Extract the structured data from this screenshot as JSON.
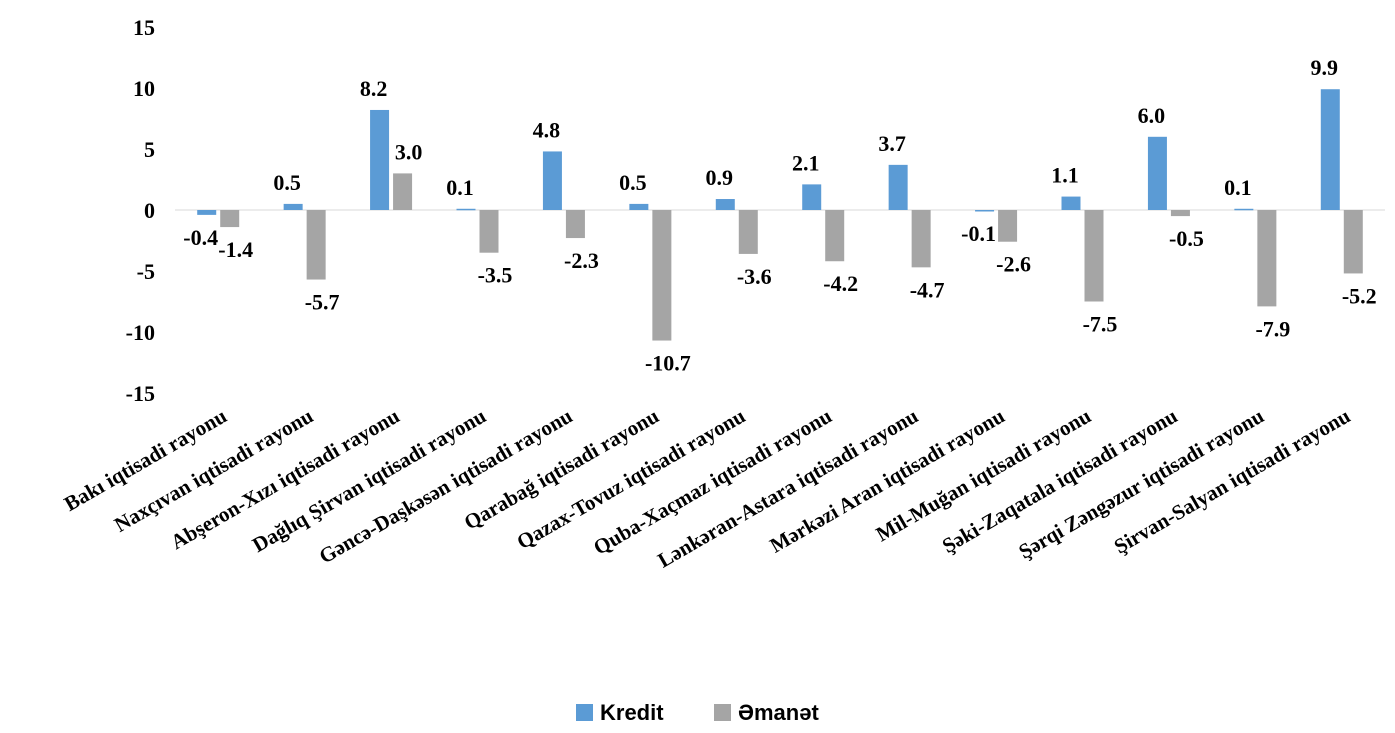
{
  "chart_data": {
    "type": "bar",
    "title": "",
    "xlabel": "",
    "ylabel": "",
    "ylim": [
      -15,
      15
    ],
    "yticks": [
      15,
      10,
      5,
      0,
      -5,
      -10,
      -15
    ],
    "grid": false,
    "legend_position": "bottom",
    "categories": [
      "Bakı iqtisadi rayonu",
      "Naxçıvan iqtisadi rayonu",
      "Abşeron-Xızı iqtisadi rayonu",
      "Dağlıq Şirvan iqtisadi rayonu",
      "Gəncə-Daşkəsən iqtisadi rayonu",
      "Qarabağ iqtisadi rayonu",
      "Qazax-Tovuz iqtisadi rayonu",
      "Quba-Xaçmaz iqtisadi rayonu",
      "Lənkəran-Astara iqtisadi rayonu",
      "Mərkəzi Aran iqtisadi rayonu",
      "Mil-Muğan iqtisadi rayonu",
      "Şəki-Zaqatala iqtisadi rayonu",
      "Şərqi Zəngəzur iqtisadi rayonu",
      "Şirvan-Salyan iqtisadi rayonu"
    ],
    "series": [
      {
        "name": "Kredit",
        "color": "#5b9bd5",
        "values": [
          -0.4,
          0.5,
          8.2,
          0.1,
          4.8,
          0.5,
          0.9,
          2.1,
          3.7,
          -0.1,
          1.1,
          6.0,
          0.1,
          9.9
        ],
        "labels": [
          "-0.4",
          "0.5",
          "8.2",
          "0.1",
          "4.8",
          "0.5",
          "0.9",
          "2.1",
          "3.7",
          "-0.1",
          "1.1",
          "6.0",
          "0.1",
          "9.9"
        ]
      },
      {
        "name": "Əmanət",
        "color": "#a5a5a5",
        "values": [
          -1.4,
          -5.7,
          3.0,
          -3.5,
          -2.3,
          -10.7,
          -3.6,
          -4.2,
          -4.7,
          -2.6,
          -7.5,
          -0.5,
          -7.9,
          -5.2
        ],
        "labels": [
          "-1.4",
          "-5.7",
          "3.0",
          "-3.5",
          "-2.3",
          "-10.7",
          "-3.6",
          "-4.2",
          "-4.7",
          "-2.6",
          "-7.5",
          "-0.5",
          "-7.9",
          "-5.2"
        ]
      }
    ]
  }
}
